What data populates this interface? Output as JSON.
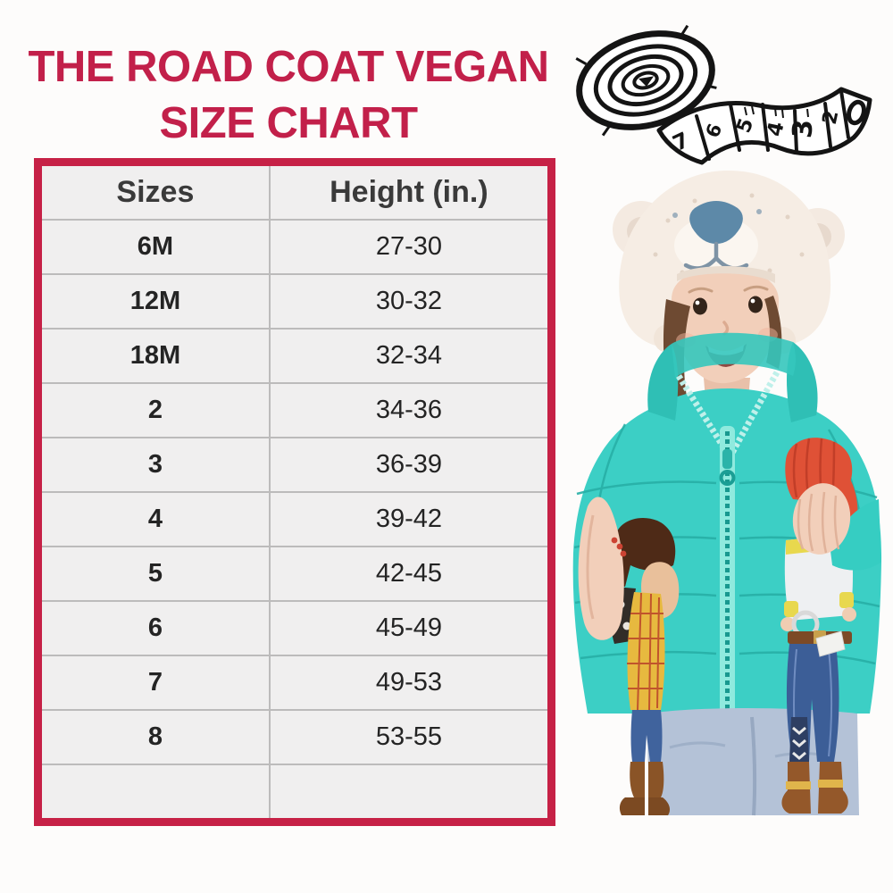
{
  "title": {
    "line1": "THE ROAD COAT VEGAN",
    "line2": "SIZE CHART",
    "color": "#c2204a"
  },
  "table": {
    "headers": {
      "sizes": "Sizes",
      "height": "Height (in.)"
    },
    "rows": [
      {
        "size": "6M",
        "height": "27-30"
      },
      {
        "size": "12M",
        "height": "30-32"
      },
      {
        "size": "18M",
        "height": "32-34"
      },
      {
        "size": "2",
        "height": "34-36"
      },
      {
        "size": "3",
        "height": "36-39"
      },
      {
        "size": "4",
        "height": "39-42"
      },
      {
        "size": "5",
        "height": "42-45"
      },
      {
        "size": "6",
        "height": "45-49"
      },
      {
        "size": "7",
        "height": "49-53"
      },
      {
        "size": "8",
        "height": "53-55"
      },
      {
        "size": "",
        "height": ""
      }
    ],
    "border_color": "#c62146",
    "cell_background": "#f0efef"
  },
  "illustrations": {
    "tape_measure": {
      "label": "hand-drawn measuring tape",
      "numbers": [
        "7",
        "6",
        "5",
        "4",
        "3",
        "2"
      ]
    },
    "photo": {
      "label": "toddler in teal Road Coat puffer with white bear knit hat holding Woody and Jessie dolls",
      "coat_color": "#3ccfc5"
    }
  }
}
